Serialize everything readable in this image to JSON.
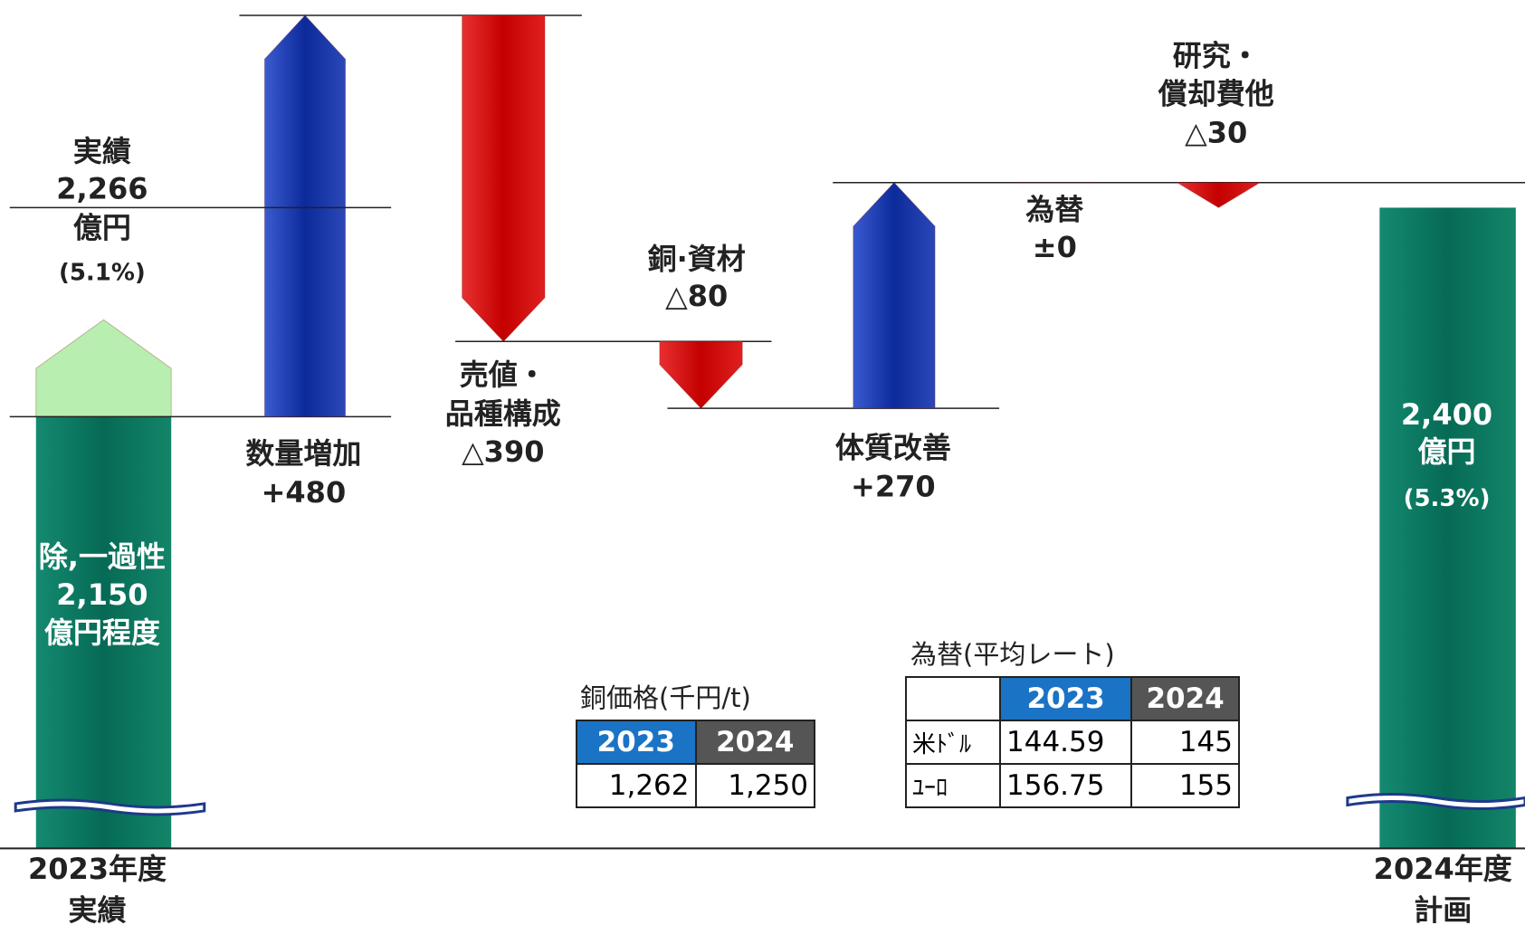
{
  "chart_data": {
    "type": "waterfall",
    "ylim": [
      1640,
      2640
    ],
    "start": {
      "title": "実績",
      "value": 2266,
      "value_label": "2,266",
      "unit": "億円",
      "share": "(5.1%)",
      "base_note": "除,一過性",
      "base": 2150,
      "base_label": "2,150",
      "base_unit": "億円程度",
      "category": "2023年度",
      "category_sub": "実績"
    },
    "steps": {
      "names": [
        [
          "数量増加"
        ],
        [
          "売値・",
          "品種構成"
        ],
        [
          "銅·資材"
        ],
        [
          "体質改善"
        ],
        [
          "為替"
        ],
        [
          "研究・",
          "償却費他"
        ]
      ],
      "values": [
        480,
        -390,
        -80,
        270,
        0,
        -30
      ],
      "value_labels": [
        "+480",
        "△390",
        "△80",
        "+270",
        "±0",
        "△30"
      ]
    },
    "end": {
      "value": 2400,
      "value_label": "2,400",
      "unit": "億円",
      "share": "(5.3%)",
      "category": "2024年度",
      "category_sub": "計画"
    }
  },
  "tables": {
    "copper": {
      "title": "銅価格(千円/t)",
      "header": [
        "2023",
        "2024"
      ],
      "rows": [
        [
          "1,262",
          "1,250"
        ]
      ]
    },
    "fx": {
      "title": "為替(平均レート)",
      "header": [
        "2023",
        "2024"
      ],
      "rows": [
        {
          "label": "米ﾄﾞﾙ",
          "cells": [
            "144.59",
            "145"
          ]
        },
        {
          "label": "ﾕｰﾛ",
          "cells": [
            "156.75",
            "155"
          ]
        }
      ]
    }
  }
}
